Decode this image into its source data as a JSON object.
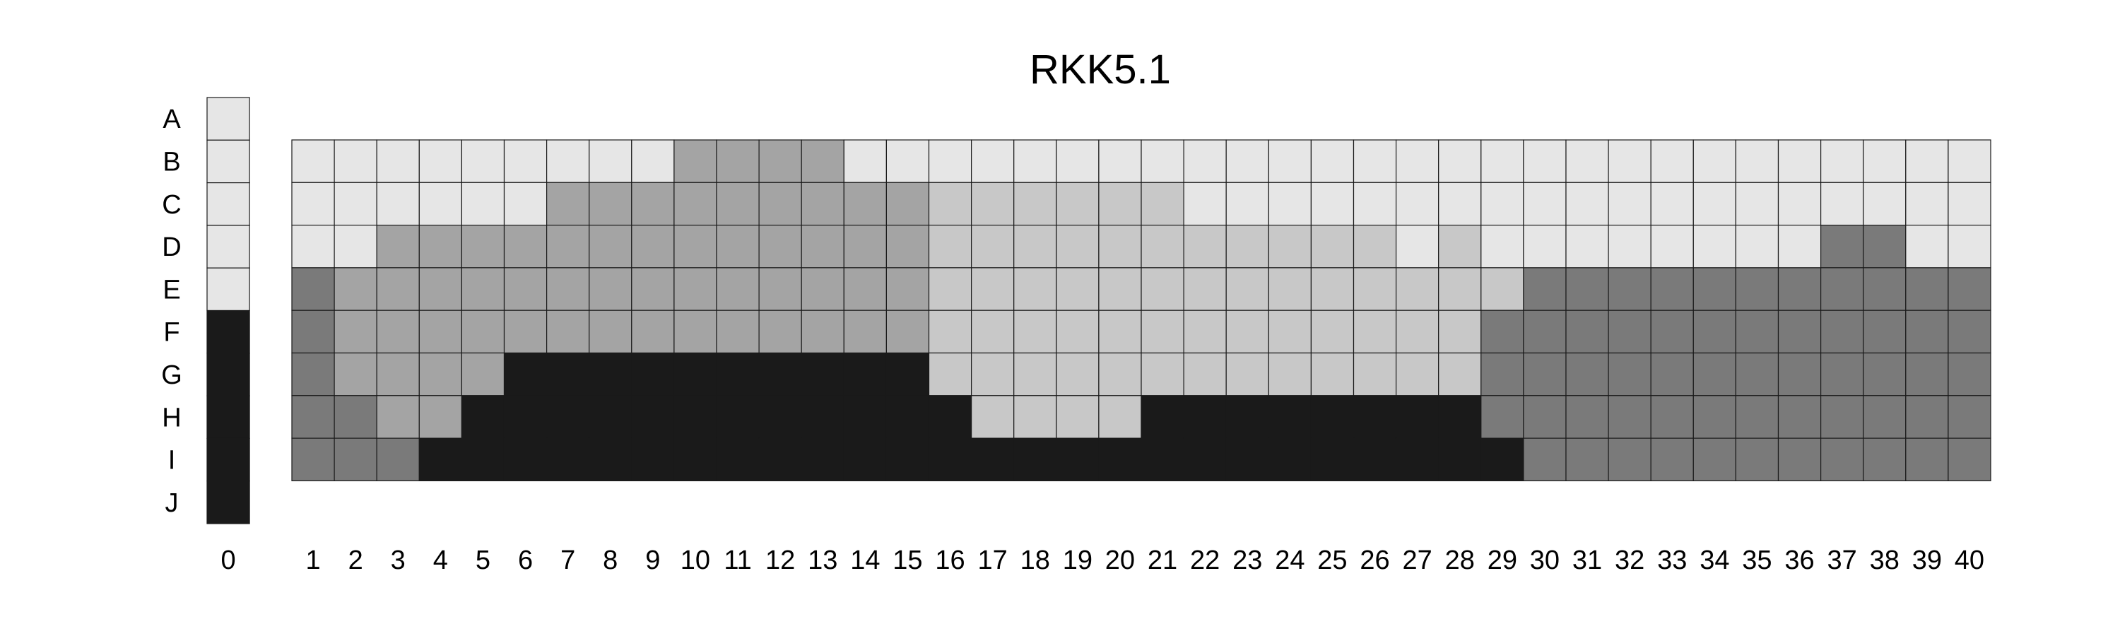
{
  "chart_data": {
    "type": "heatmap",
    "title": "RKK5.1",
    "xlabel": "",
    "ylabel": "",
    "grid": true,
    "rows": [
      "A",
      "B",
      "C",
      "D",
      "E",
      "F",
      "G",
      "H",
      "I",
      "J"
    ],
    "columns": [
      "1",
      "2",
      "3",
      "4",
      "5",
      "6",
      "7",
      "8",
      "9",
      "10",
      "11",
      "12",
      "13",
      "14",
      "15",
      "16",
      "17",
      "18",
      "19",
      "20",
      "21",
      "22",
      "23",
      "24",
      "25",
      "26",
      "27",
      "28",
      "29",
      "30",
      "31",
      "32",
      "33",
      "34",
      "35",
      "36",
      "37",
      "38",
      "39",
      "40"
    ],
    "reference_column_label": "0",
    "reference_colors": [
      "#e6e6e6",
      "#e6e6e6",
      "#e6e6e6",
      "#e6e6e6",
      "#e6e6e6",
      "#1a1a1a",
      "#1a1a1a",
      "#1a1a1a",
      "#1a1a1a",
      "#1a1a1a"
    ],
    "grid_rows": [
      "B",
      "C",
      "D",
      "E",
      "F",
      "G",
      "H",
      "I"
    ],
    "palette": {
      "L": "#e6e6e6",
      "S": "#c8c8c8",
      "G": "#a4a4a4",
      "D": "#7a7a7a",
      "K": "#1a1a1a"
    },
    "cells": [
      "LLLLLLLLLGGGGLLLLLLLLLLLLLLLLLLLLLLLLLLL",
      "LLLLLLGGGGGGGGGSSSSSSLLLLLLLLLLLLLLLLLLL",
      "LLGGGGGGGGGGGGGSSSSSSSSSSSLSLLLLLLLLDDLL",
      "DGGGGGGGGGGGGGGSSSSSSSSSSSSSSDDDDDDDDDDD",
      "DGGGGGGGGGGGGGGSSSSSSSSSSSSSDDDDDDDDDDDD",
      "DGGGGKKKKKKKKKKSSSSSSSSSSSSSDDDDDDDDDDDD",
      "DDGGKKKKKKKKKKKKSSSSKKKKKKKKDDDDDDDDDDDD",
      "DDDKKKKKKKKKKKKKKKKKKKKKKKKKKDDDDDDDDDDD"
    ]
  }
}
